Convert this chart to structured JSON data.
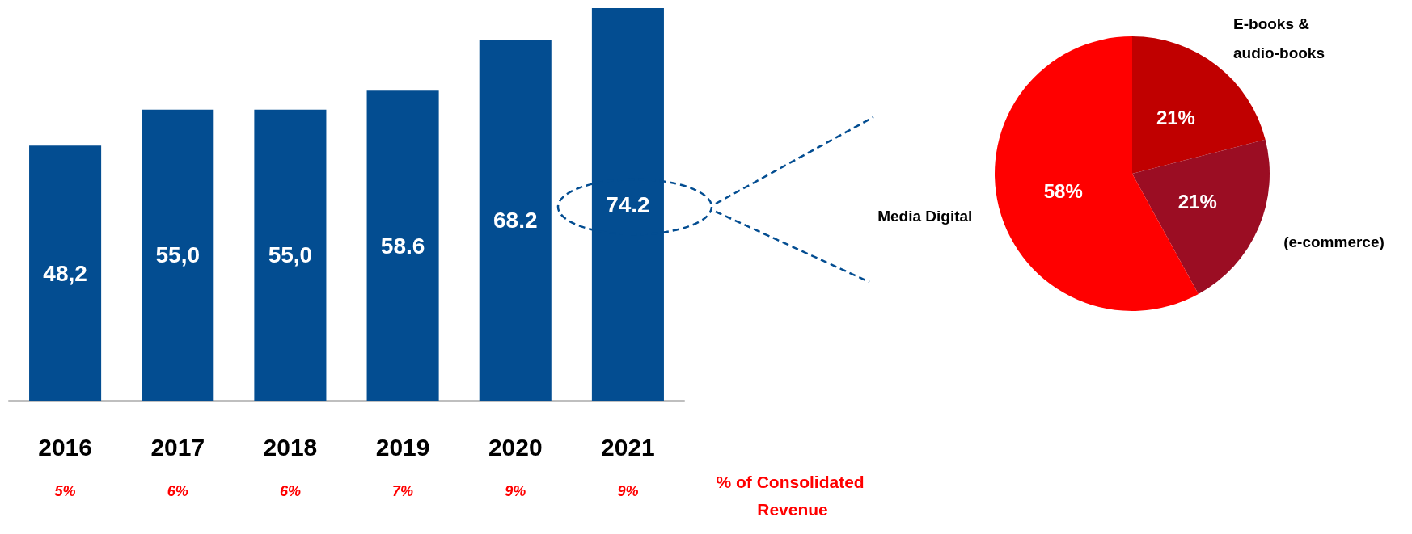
{
  "chart_data": [
    {
      "type": "bar",
      "categories": [
        "2016",
        "2017",
        "2018",
        "2019",
        "2020",
        "2021"
      ],
      "values": [
        48.2,
        55.0,
        55.0,
        58.6,
        68.2,
        74.2
      ],
      "value_labels": [
        "48,2",
        "55,0",
        "55,0",
        "58.6",
        "68.2",
        "74.2"
      ],
      "color": "#034d91",
      "tick_labels": "x",
      "legend": false,
      "annotations": [
        "5%",
        "6%",
        "6%",
        "7%",
        "9%",
        "9%",
        "% of Consolidated Revenue"
      ]
    },
    {
      "type": "pie",
      "categories": [
        "E-books & audio-books",
        "(e-commerce)",
        "Media Digital"
      ],
      "values": [
        21,
        21,
        58
      ],
      "value_labels": [
        "21%",
        "21%",
        "58%"
      ],
      "colors": [
        "#c00000",
        "#9b0d23",
        "#ff0000"
      ],
      "legend": false
    }
  ]
}
